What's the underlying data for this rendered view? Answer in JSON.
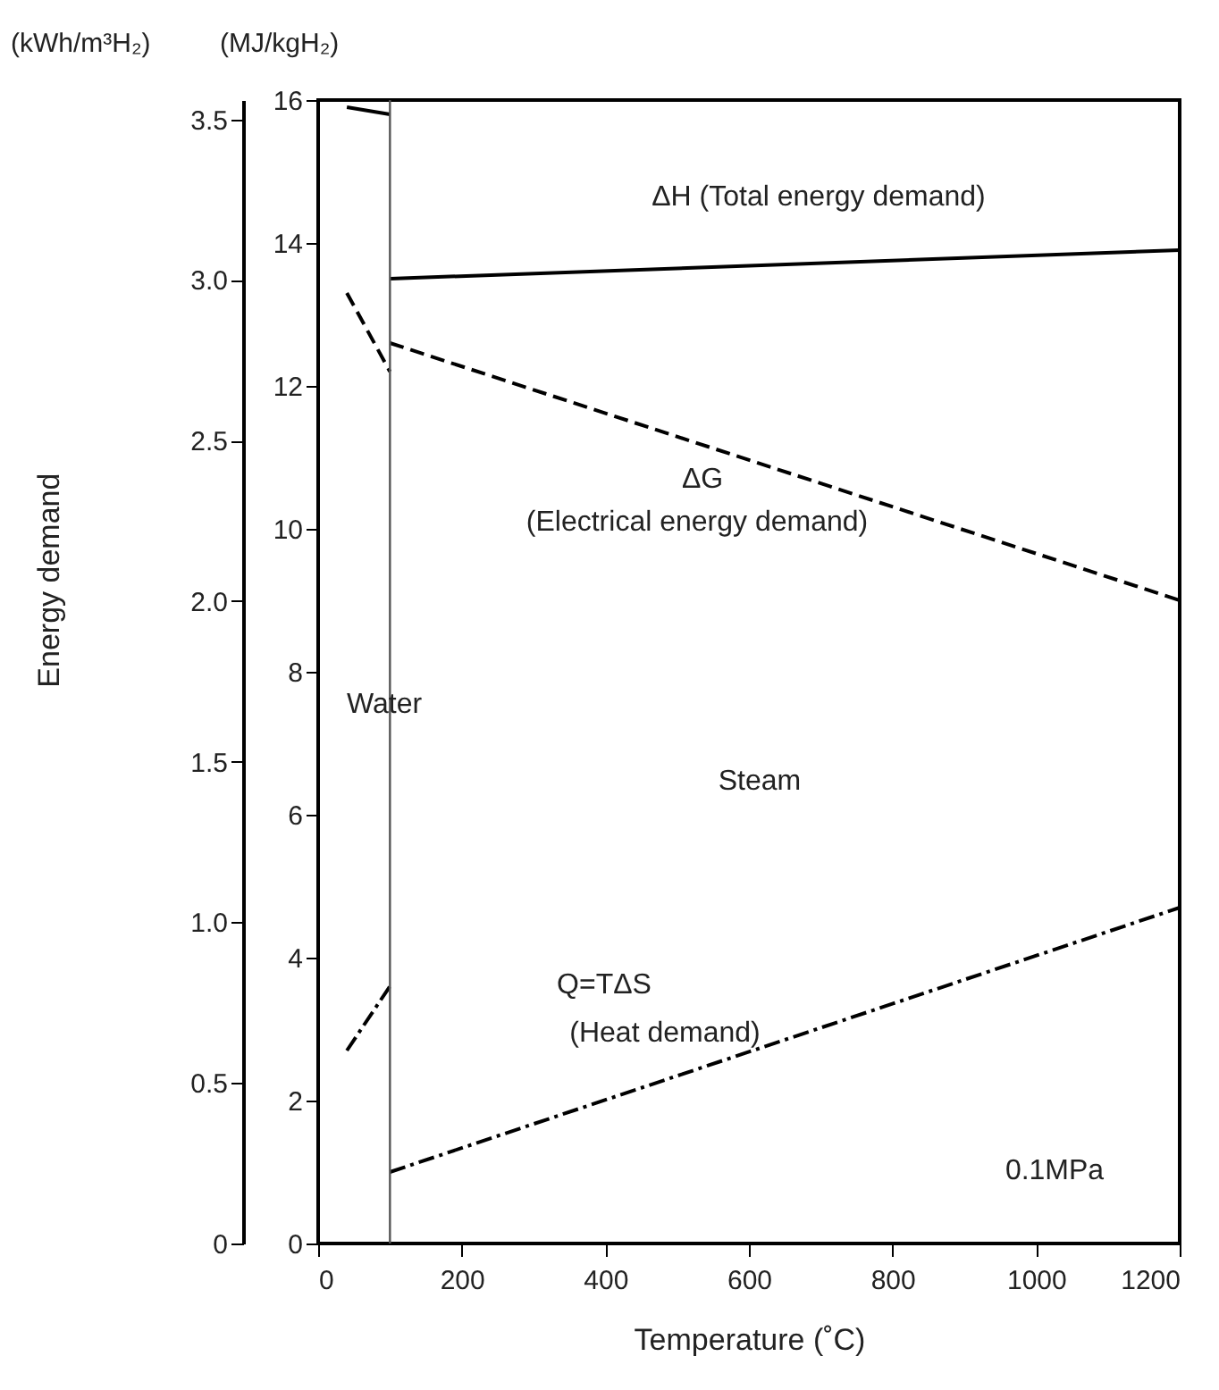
{
  "chart_data": {
    "type": "line",
    "xlabel": "Temperature (˚C)",
    "ylabel": "(MJ/kgH₂)",
    "y2label": "(kWh/m³H₂)",
    "xlim": [
      0,
      1200
    ],
    "xticks": [
      0,
      200,
      400,
      600,
      800,
      1000,
      1200
    ],
    "ylim": [
      0,
      16
    ],
    "yticks": [
      0,
      2,
      4,
      6,
      8,
      10,
      12,
      14,
      16
    ],
    "y2lim": [
      0,
      3.56
    ],
    "y2ticks": [
      0,
      0.5,
      {
        "value": 1,
        "label": "1.0"
      },
      1.5,
      {
        "value": 2,
        "label": "2.0"
      },
      2.5,
      {
        "value": 3,
        "label": "3.0"
      },
      3.5
    ],
    "grid": false,
    "legend": false,
    "marker": "none",
    "series": [
      {
        "color": "#000000",
        "line_style": "solid",
        "x": [
          40,
          100
        ],
        "values": [
          15.9,
          15.8
        ]
      },
      {
        "color": "#000000",
        "line_style": "solid",
        "x": [
          100,
          1200
        ],
        "values": [
          13.5,
          13.9
        ]
      },
      {
        "color": "#000000",
        "line_style": "dashed",
        "x": [
          40,
          100
        ],
        "values": [
          13.3,
          12.2
        ]
      },
      {
        "color": "#000000",
        "line_style": "dashed",
        "x": [
          100,
          1200
        ],
        "values": [
          12.6,
          9.0
        ]
      },
      {
        "color": "#000000",
        "line_style": "dotted",
        "x": [
          40,
          100
        ],
        "values": [
          2.7,
          3.6
        ]
      },
      {
        "color": "#000000",
        "line_style": "dotted",
        "x": [
          100,
          1200
        ],
        "values": [
          1.0,
          4.7
        ]
      }
    ],
    "ref_lines": [
      {
        "axis": "x",
        "value": 100,
        "color": "#555555"
      }
    ],
    "annotations": [
      "Energy demand",
      "ΔH (Total energy demand)",
      "ΔG",
      "(Electrical energy demand)",
      "Water",
      "Steam",
      "Q=TΔS",
      "(Heat demand)",
      "0.1MPa"
    ]
  }
}
